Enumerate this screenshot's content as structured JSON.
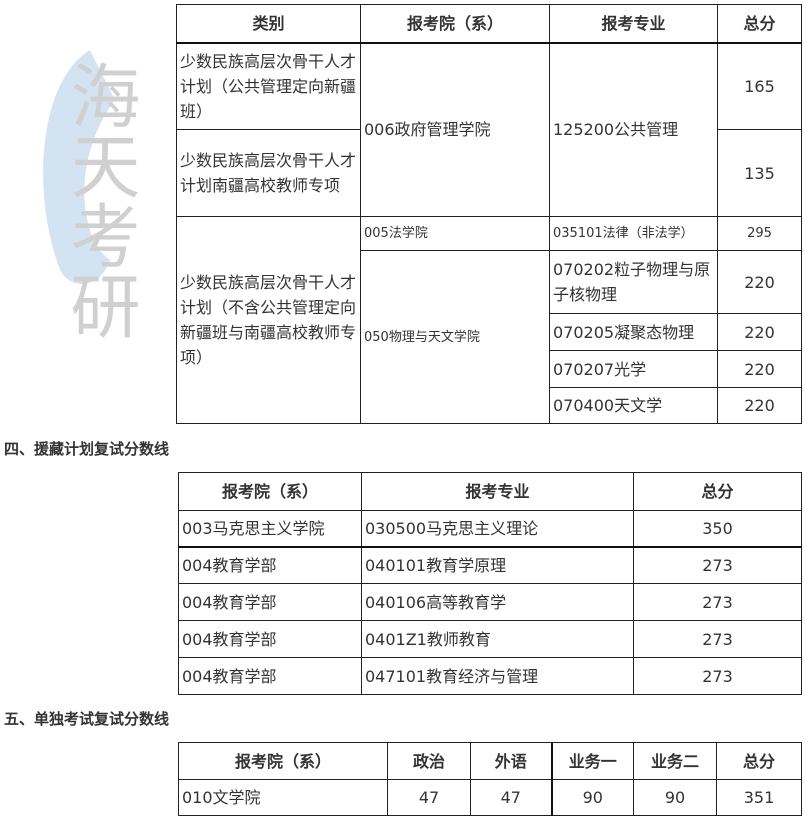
{
  "watermark": {
    "text": "海天考研",
    "logo_color": "#c9dcef",
    "text_color": "#d0d0d0"
  },
  "table1": {
    "headers": [
      "类别",
      "报考院（系）",
      "报考专业",
      "总分"
    ],
    "categories": [
      "少数民族高层次骨干人才计划（公共管理定向新疆班）",
      "少数民族高层次骨干人才计划南疆高校教师专项",
      "少数民族高层次骨干人才计划（不含公共管理定向新疆班与南疆高校教师专项）"
    ],
    "depts": [
      "006政府管理学院",
      "005法学院",
      "050物理与天文学院"
    ],
    "majors": [
      "125200公共管理",
      "035101法律（非法学）",
      "070202粒子物理与原子核物理",
      "070205凝聚态物理",
      "070207光学",
      "070400天文学"
    ],
    "scores": [
      "165",
      "135",
      "295",
      "220",
      "220",
      "220",
      "220"
    ]
  },
  "section4": {
    "title": "四、援藏计划复试分数线",
    "headers": [
      "报考院（系）",
      "报考专业",
      "总分"
    ],
    "rows": [
      [
        "003马克思主义学院",
        "030500马克思主义理论",
        "350"
      ],
      [
        "004教育学部",
        "040101教育学原理",
        "273"
      ],
      [
        "004教育学部",
        "040106高等教育学",
        "273"
      ],
      [
        "004教育学部",
        "0401Z1教师教育",
        "273"
      ],
      [
        "004教育学部",
        "047101教育经济与管理",
        "273"
      ]
    ]
  },
  "section5": {
    "title": "五、单独考试复试分数线",
    "headers": [
      "报考院（系）",
      "政治",
      "外语",
      "业务一",
      "业务二",
      "总分"
    ],
    "rows": [
      [
        "010文学院",
        "47",
        "47",
        "90",
        "90",
        "351"
      ]
    ]
  }
}
